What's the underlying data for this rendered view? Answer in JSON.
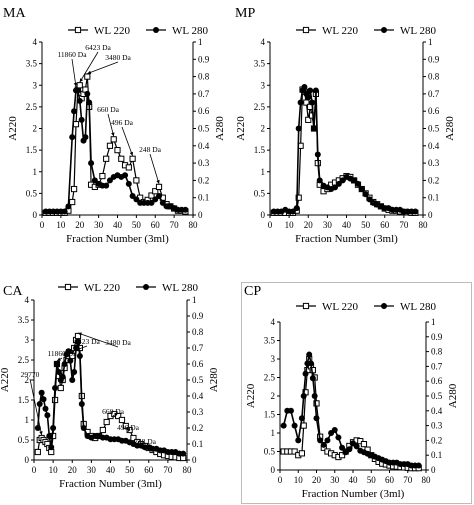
{
  "chart_data": [
    {
      "type": "line",
      "panel_label": "MA",
      "xlabel": "Fraction Number (3ml)",
      "ylabel_left": "A220",
      "ylabel_right": "A280",
      "xlim": [
        0,
        80
      ],
      "ylim_left": [
        0,
        4
      ],
      "ylim_right": [
        0,
        1
      ],
      "x_ticks": [
        "0",
        "10",
        "20",
        "30",
        "40",
        "50",
        "60",
        "70",
        "80"
      ],
      "y_left_ticks": [
        "0",
        "0.5",
        "1",
        "1.5",
        "2",
        "2.5",
        "3",
        "3.5",
        "4"
      ],
      "y_right_ticks": [
        "0",
        "0.1",
        "0.2",
        "0.3",
        "0.4",
        "0.5",
        "0.6",
        "0.7",
        "0.8",
        "0.9",
        "1"
      ],
      "legend_position": "top",
      "series": [
        {
          "name": "WL 220",
          "axis": "left",
          "marker": "open-square",
          "x": [
            2,
            4,
            6,
            8,
            10,
            12,
            14,
            16,
            17,
            18,
            19,
            20,
            21,
            22,
            23,
            24,
            25,
            26,
            28,
            30,
            32,
            34,
            36,
            38,
            40,
            42,
            44,
            46,
            48,
            50,
            52,
            54,
            56,
            58,
            60,
            62,
            64,
            66,
            68,
            70,
            72,
            74,
            76
          ],
          "y": [
            0.05,
            0.05,
            0.05,
            0.05,
            0.05,
            0.05,
            0.1,
            0.3,
            0.6,
            2.1,
            2.9,
            3.0,
            2.7,
            2.8,
            2.9,
            3.2,
            2.5,
            0.7,
            0.65,
            0.7,
            0.9,
            1.3,
            1.6,
            1.75,
            1.5,
            1.3,
            1.15,
            1.1,
            1.3,
            0.8,
            0.4,
            0.3,
            0.35,
            0.45,
            0.55,
            0.65,
            0.4,
            0.25,
            0.2,
            0.15,
            0.1,
            0.1,
            0.08
          ]
        },
        {
          "name": "WL 280",
          "axis": "right",
          "marker": "filled-circle",
          "x": [
            2,
            4,
            6,
            8,
            10,
            12,
            14,
            16,
            17,
            18,
            19,
            20,
            21,
            22,
            23,
            24,
            25,
            26,
            28,
            30,
            32,
            34,
            36,
            38,
            40,
            42,
            44,
            46,
            48,
            50,
            52,
            54,
            56,
            58,
            60,
            62,
            64,
            66,
            68,
            70,
            72,
            74,
            76
          ],
          "y": [
            0.02,
            0.02,
            0.02,
            0.02,
            0.02,
            0.02,
            0.05,
            0.45,
            0.6,
            0.72,
            0.72,
            0.66,
            0.55,
            0.43,
            0.45,
            0.7,
            0.65,
            0.3,
            0.2,
            0.18,
            0.17,
            0.17,
            0.2,
            0.22,
            0.23,
            0.22,
            0.23,
            0.18,
            0.11,
            0.09,
            0.07,
            0.07,
            0.07,
            0.07,
            0.09,
            0.11,
            0.07,
            0.05,
            0.05,
            0.04,
            0.03,
            0.03,
            0.03
          ]
        }
      ],
      "annotations": [
        {
          "text": "11860 Da",
          "x": 18,
          "y": 2.9
        },
        {
          "text": "6423 Da",
          "x": 20,
          "y": 3.0
        },
        {
          "text": "3480 Da",
          "x": 24,
          "y": 3.2
        },
        {
          "text": "660 Da",
          "x": 38,
          "y": 1.75
        },
        {
          "text": "496 Da",
          "x": 48,
          "y": 1.3
        },
        {
          "text": "248 Da",
          "x": 62,
          "y": 0.65
        }
      ]
    },
    {
      "type": "line",
      "panel_label": "MP",
      "xlabel": "Fraction Number (3ml)",
      "ylabel_left": "A220",
      "ylabel_right": "A280",
      "xlim": [
        0,
        80
      ],
      "ylim_left": [
        0,
        4
      ],
      "ylim_right": [
        0,
        1
      ],
      "x_ticks": [
        "0",
        "10",
        "20",
        "30",
        "40",
        "50",
        "60",
        "70",
        "80"
      ],
      "y_left_ticks": [
        "0",
        "0.5",
        "1",
        "1.5",
        "2",
        "2.5",
        "3",
        "3.5",
        "4"
      ],
      "y_right_ticks": [
        "0",
        "0.1",
        "0.2",
        "0.3",
        "0.4",
        "0.5",
        "0.6",
        "0.7",
        "0.8",
        "0.9",
        "1"
      ],
      "legend_position": "top",
      "series": [
        {
          "name": "WL 220",
          "axis": "left",
          "marker": "open-square",
          "x": [
            2,
            4,
            6,
            8,
            10,
            12,
            14,
            15,
            16,
            17,
            18,
            19,
            20,
            21,
            22,
            23,
            24,
            25,
            26,
            28,
            30,
            32,
            34,
            36,
            38,
            40,
            42,
            44,
            46,
            48,
            50,
            52,
            54,
            56,
            58,
            60,
            62,
            64,
            66,
            68,
            70,
            72,
            74,
            76
          ],
          "y": [
            0.05,
            0.05,
            0.05,
            0.05,
            0.05,
            0.05,
            0.1,
            0.4,
            1.6,
            2.9,
            2.85,
            2.6,
            2.2,
            2.5,
            2.3,
            2.0,
            2.8,
            1.2,
            0.7,
            0.55,
            0.6,
            0.7,
            0.75,
            0.8,
            0.85,
            0.9,
            0.88,
            0.8,
            0.7,
            0.6,
            0.5,
            0.4,
            0.3,
            0.25,
            0.2,
            0.15,
            0.12,
            0.1,
            0.1,
            0.08,
            0.07,
            0.06,
            0.05,
            0.05
          ]
        },
        {
          "name": "WL 280",
          "axis": "right",
          "marker": "filled-circle",
          "x": [
            2,
            4,
            6,
            8,
            10,
            12,
            14,
            15,
            16,
            17,
            18,
            19,
            20,
            21,
            22,
            23,
            24,
            25,
            26,
            28,
            30,
            32,
            34,
            36,
            38,
            40,
            42,
            44,
            46,
            48,
            50,
            52,
            54,
            56,
            58,
            60,
            62,
            64,
            66,
            68,
            70,
            72,
            74,
            76
          ],
          "y": [
            0.02,
            0.02,
            0.02,
            0.03,
            0.02,
            0.02,
            0.04,
            0.5,
            0.65,
            0.72,
            0.74,
            0.7,
            0.68,
            0.72,
            0.65,
            0.5,
            0.72,
            0.35,
            0.2,
            0.17,
            0.16,
            0.15,
            0.16,
            0.18,
            0.2,
            0.22,
            0.21,
            0.2,
            0.18,
            0.15,
            0.12,
            0.09,
            0.07,
            0.06,
            0.05,
            0.04,
            0.04,
            0.03,
            0.03,
            0.03,
            0.02,
            0.02,
            0.02,
            0.02
          ]
        }
      ],
      "annotations": []
    },
    {
      "type": "line",
      "panel_label": "CA",
      "xlabel": "Fraction Number (3ml)",
      "ylabel_left": "A220",
      "ylabel_right": "A280",
      "xlim": [
        0,
        80
      ],
      "ylim_left": [
        0,
        4
      ],
      "ylim_right": [
        0,
        1
      ],
      "x_ticks": [
        "0",
        "10",
        "20",
        "30",
        "40",
        "50",
        "60",
        "70",
        "80"
      ],
      "y_left_ticks": [
        "0",
        "0.5",
        "1",
        "1.5",
        "2",
        "2.5",
        "3",
        "3.5",
        "4"
      ],
      "y_right_ticks": [
        "0",
        "0.1",
        "0.2",
        "0.3",
        "0.4",
        "0.5",
        "0.6",
        "0.7",
        "0.8",
        "0.9",
        "1"
      ],
      "legend_position": "top",
      "series": [
        {
          "name": "WL 220",
          "axis": "left",
          "marker": "open-square",
          "x": [
            2,
            3,
            4,
            5,
            6,
            7,
            8,
            9,
            10,
            11,
            12,
            13,
            14,
            15,
            16,
            17,
            18,
            19,
            20,
            21,
            22,
            23,
            24,
            25,
            26,
            28,
            30,
            32,
            34,
            36,
            38,
            40,
            42,
            44,
            46,
            48,
            50,
            52,
            54,
            56,
            58,
            60,
            62,
            64,
            66,
            68,
            70,
            72,
            74,
            76,
            78
          ],
          "y": [
            0.2,
            0.5,
            0.55,
            0.5,
            0.45,
            0.4,
            0.3,
            0.2,
            0.6,
            1.5,
            2.4,
            2.1,
            1.8,
            2.0,
            2.3,
            2.5,
            2.6,
            2.7,
            2.6,
            2.8,
            3.0,
            3.1,
            2.8,
            1.6,
            0.9,
            0.7,
            0.6,
            0.55,
            0.6,
            0.75,
            0.95,
            1.1,
            1.15,
            1.1,
            1.0,
            0.85,
            0.75,
            0.55,
            0.45,
            0.4,
            0.35,
            0.3,
            0.25,
            0.2,
            0.15,
            0.12,
            0.1,
            0.08,
            0.07,
            0.05,
            0.05
          ]
        },
        {
          "name": "WL 280",
          "axis": "right",
          "marker": "filled-circle",
          "x": [
            2,
            3,
            4,
            5,
            6,
            7,
            8,
            9,
            10,
            11,
            12,
            13,
            14,
            15,
            16,
            17,
            18,
            19,
            20,
            21,
            22,
            23,
            24,
            25,
            26,
            28,
            30,
            32,
            34,
            36,
            38,
            40,
            42,
            44,
            46,
            48,
            50,
            52,
            54,
            56,
            58,
            60,
            62,
            64,
            66,
            68,
            70,
            72,
            74,
            76,
            78
          ],
          "y": [
            0.2,
            0.35,
            0.42,
            0.38,
            0.32,
            0.28,
            0.15,
            0.08,
            0.2,
            0.45,
            0.6,
            0.55,
            0.5,
            0.52,
            0.6,
            0.66,
            0.68,
            0.62,
            0.5,
            0.55,
            0.7,
            0.74,
            0.65,
            0.35,
            0.2,
            0.15,
            0.14,
            0.15,
            0.15,
            0.14,
            0.14,
            0.13,
            0.13,
            0.13,
            0.12,
            0.12,
            0.11,
            0.1,
            0.09,
            0.09,
            0.08,
            0.08,
            0.07,
            0.07,
            0.06,
            0.06,
            0.05,
            0.05,
            0.05,
            0.04,
            0.04
          ]
        }
      ],
      "annotations": [
        {
          "text": "29770",
          "x": 4,
          "y": 0.55
        },
        {
          "text": "11860 Da",
          "x": 12,
          "y": 2.4
        },
        {
          "text": "6423 Da",
          "x": 18,
          "y": 2.6
        },
        {
          "text": "3480 Da",
          "x": 23,
          "y": 3.1
        },
        {
          "text": "660 Da",
          "x": 44,
          "y": 1.1
        },
        {
          "text": "496 Da",
          "x": 50,
          "y": 0.75
        },
        {
          "text": "248 Da",
          "x": 62,
          "y": 0.25
        }
      ]
    },
    {
      "type": "line",
      "panel_label": "CP",
      "xlabel": "Fraction Number (3ml)",
      "ylabel_left": "A220",
      "ylabel_right": "A280",
      "xlim": [
        0,
        80
      ],
      "ylim_left": [
        0,
        4
      ],
      "ylim_right": [
        0,
        1
      ],
      "x_ticks": [
        "0",
        "10",
        "20",
        "30",
        "40",
        "50",
        "60",
        "70",
        "80"
      ],
      "y_left_ticks": [
        "0",
        "0.5",
        "1",
        "1.5",
        "2",
        "2.5",
        "3",
        "3.5",
        "4"
      ],
      "y_right_ticks": [
        "0",
        "0.1",
        "0.2",
        "0.3",
        "0.4",
        "0.5",
        "0.6",
        "0.7",
        "0.8",
        "0.9",
        "1"
      ],
      "legend_position": "top",
      "series": [
        {
          "name": "WL 220",
          "axis": "left",
          "marker": "open-square",
          "x": [
            2,
            4,
            6,
            8,
            10,
            12,
            13,
            14,
            15,
            16,
            17,
            18,
            19,
            20,
            22,
            24,
            26,
            28,
            30,
            32,
            34,
            36,
            38,
            40,
            42,
            44,
            46,
            48,
            50,
            52,
            54,
            56,
            58,
            60,
            62,
            64,
            66,
            68,
            70,
            72,
            74,
            76
          ],
          "y": [
            0.5,
            0.5,
            0.5,
            0.5,
            0.4,
            0.45,
            1.2,
            2.1,
            2.7,
            3.0,
            2.8,
            2.7,
            2.5,
            1.8,
            0.9,
            0.6,
            0.5,
            0.45,
            0.4,
            0.35,
            0.4,
            0.5,
            0.65,
            0.75,
            0.8,
            0.78,
            0.7,
            0.55,
            0.4,
            0.3,
            0.22,
            0.17,
            0.15,
            0.12,
            0.1,
            0.09,
            0.08,
            0.07,
            0.06,
            0.05,
            0.05,
            0.05
          ]
        },
        {
          "name": "WL 280",
          "axis": "right",
          "marker": "filled-circle",
          "x": [
            2,
            4,
            6,
            8,
            10,
            12,
            13,
            14,
            15,
            16,
            17,
            18,
            19,
            20,
            22,
            24,
            26,
            28,
            30,
            32,
            34,
            36,
            38,
            40,
            42,
            44,
            46,
            48,
            50,
            52,
            54,
            56,
            58,
            60,
            62,
            64,
            66,
            68,
            70,
            72,
            74,
            76
          ],
          "y": [
            0.3,
            0.4,
            0.4,
            0.3,
            0.2,
            0.35,
            0.5,
            0.65,
            0.72,
            0.78,
            0.72,
            0.62,
            0.5,
            0.35,
            0.2,
            0.17,
            0.2,
            0.25,
            0.27,
            0.22,
            0.15,
            0.12,
            0.14,
            0.18,
            0.16,
            0.13,
            0.12,
            0.11,
            0.1,
            0.09,
            0.08,
            0.07,
            0.06,
            0.05,
            0.05,
            0.05,
            0.04,
            0.04,
            0.04,
            0.03,
            0.03,
            0.03
          ]
        }
      ],
      "annotations": []
    }
  ]
}
